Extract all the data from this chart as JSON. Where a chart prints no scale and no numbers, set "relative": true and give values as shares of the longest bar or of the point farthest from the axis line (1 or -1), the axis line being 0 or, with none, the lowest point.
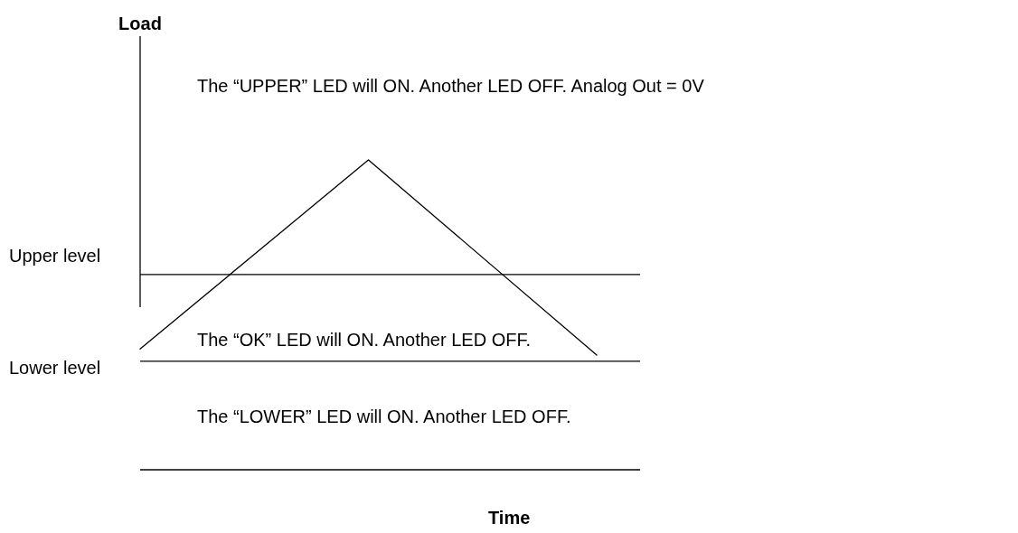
{
  "chart_data": {
    "type": "line",
    "relative": true,
    "xlabel": "Time",
    "categories": [
      null,
      null,
      null
    ],
    "series": [
      {
        "color": "#000000",
        "values": [
          0.39,
          1,
          0.37
        ]
      }
    ],
    "ref_lines": [
      {
        "axis": "y",
        "value": 0.63,
        "label": "Upper level",
        "color": "#000000"
      },
      {
        "axis": "y",
        "value": 0.35,
        "label": "Lower level",
        "color": "#000000"
      }
    ],
    "annotations": [
      "The “UPPER” LED will ON. Another LED OFF. Analog Out = 0V",
      "The “OK” LED will ON. Another LED OFF.",
      "The “LOWER” LED will ON. Another LED OFF.",
      "Load"
    ],
    "marker": "none",
    "line_style": "solid"
  }
}
